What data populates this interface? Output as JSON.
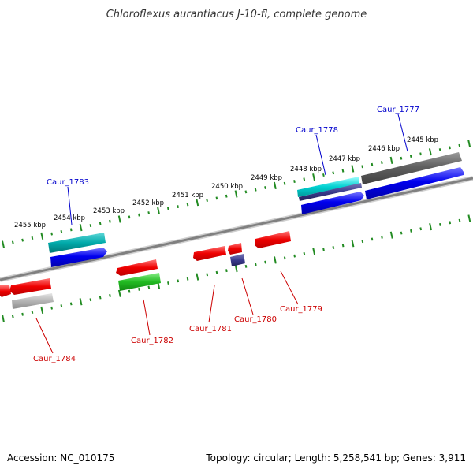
{
  "title": "Chloroflexus aurantiacus J-10-fl, complete genome",
  "footer": {
    "accession": "Accession: NC_010175",
    "summary": "Topology: circular; Length: 5,258,541 bp; Genes: 3,911"
  },
  "colors": {
    "backbone": "#808080",
    "tick": "#228b22",
    "forward_label": "#0000cc",
    "reverse_label": "#cc0000"
  },
  "ticks": [
    "2445 kbp",
    "2446 kbp",
    "2447 kbp",
    "2448 kbp",
    "2449 kbp",
    "2450 kbp",
    "2451 kbp",
    "2452 kbp",
    "2453 kbp",
    "2454 kbp",
    "2455 kbp"
  ],
  "genes": [
    {
      "label": "Caur_1777",
      "strand": "forward"
    },
    {
      "label": "Caur_1778",
      "strand": "forward"
    },
    {
      "label": "Caur_1783",
      "strand": "forward"
    },
    {
      "label": "Caur_1779",
      "strand": "reverse"
    },
    {
      "label": "Caur_1780",
      "strand": "reverse"
    },
    {
      "label": "Caur_1781",
      "strand": "reverse"
    },
    {
      "label": "Caur_1782",
      "strand": "reverse"
    },
    {
      "label": "Caur_1784",
      "strand": "reverse"
    }
  ],
  "features": [
    {
      "name": "fwd-gene-cds-1777",
      "track": "forward-cds",
      "color": "#0000ee"
    },
    {
      "name": "fwd-gene-1777",
      "track": "forward-gene",
      "color": "#606060"
    },
    {
      "name": "fwd-gene-cds-1778",
      "track": "forward-cds",
      "color": "#0000ee"
    },
    {
      "name": "fwd-misc-1778",
      "track": "forward-misc",
      "color": "#3a3a8c"
    },
    {
      "name": "fwd-gene-1778",
      "track": "forward-gene",
      "color": "#00cccc"
    },
    {
      "name": "fwd-gene-cds-1783",
      "track": "forward-cds",
      "color": "#0000ee"
    },
    {
      "name": "fwd-gene-1783",
      "track": "forward-gene",
      "color": "#00aaaa"
    },
    {
      "name": "rev-gene-1779",
      "track": "reverse-gene",
      "color": "#ee0000"
    },
    {
      "name": "rev-gene-1780a",
      "track": "reverse-gene",
      "color": "#ee0000"
    },
    {
      "name": "rev-misc-1780",
      "track": "reverse-misc",
      "color": "#3a3a8c"
    },
    {
      "name": "rev-gene-1781",
      "track": "reverse-gene",
      "color": "#ee0000"
    },
    {
      "name": "rev-gene-1782",
      "track": "reverse-gene",
      "color": "#ee0000"
    },
    {
      "name": "rev-cds-1782",
      "track": "reverse-cds",
      "color": "#22bb22"
    },
    {
      "name": "rev-gene-1784",
      "track": "reverse-gene",
      "color": "#ee0000"
    },
    {
      "name": "rev-gene-1784b",
      "track": "reverse-gene",
      "color": "#ee0000"
    },
    {
      "name": "rev-cds-1784",
      "track": "reverse-cds",
      "color": "#b4b4b4"
    }
  ]
}
